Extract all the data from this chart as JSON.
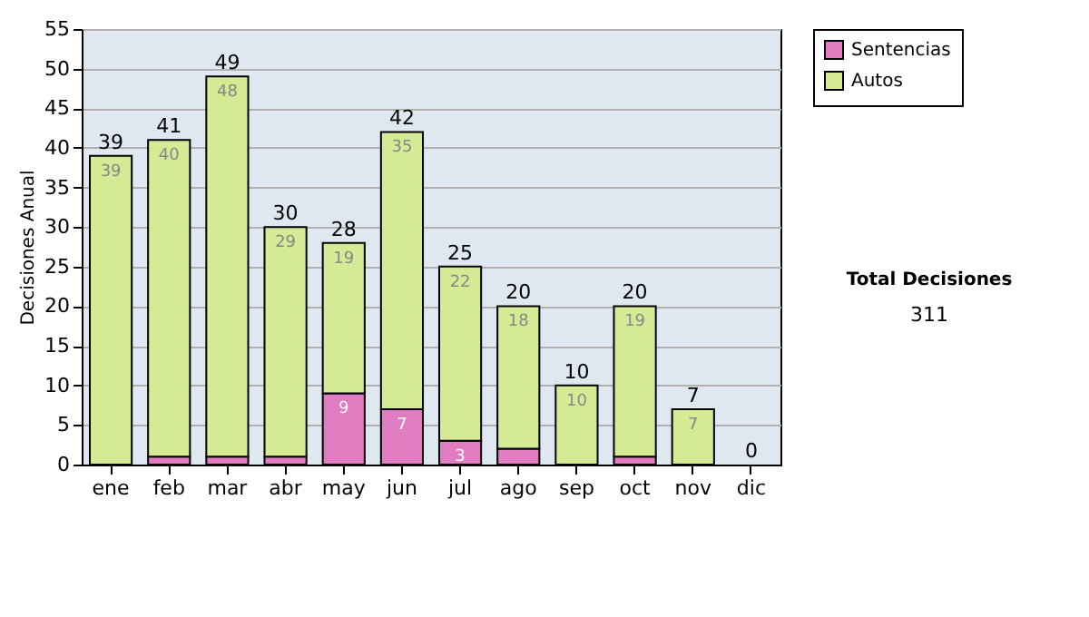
{
  "chart_data": {
    "type": "bar",
    "stacked": true,
    "ylabel": "Decisiones Anual",
    "categories": [
      "ene",
      "feb",
      "mar",
      "abr",
      "may",
      "jun",
      "jul",
      "ago",
      "sep",
      "oct",
      "nov",
      "dic"
    ],
    "series": [
      {
        "name": "Sentencias",
        "color": "#e07cc0",
        "values": [
          0,
          1,
          1,
          1,
          9,
          7,
          3,
          2,
          0,
          1,
          0,
          0
        ],
        "value_labels": [
          null,
          null,
          null,
          null,
          "9",
          "7",
          "3",
          null,
          null,
          null,
          null,
          null
        ]
      },
      {
        "name": "Autos",
        "color": "#d4ea94",
        "values": [
          39,
          40,
          48,
          29,
          19,
          35,
          22,
          18,
          10,
          19,
          7,
          0
        ],
        "value_labels": [
          "39",
          "40",
          "48",
          "29",
          "19",
          "35",
          "22",
          "18",
          "10",
          "19",
          "7",
          null
        ]
      }
    ],
    "totals": [
      "39",
      "41",
      "49",
      "30",
      "28",
      "42",
      "25",
      "20",
      "10",
      "20",
      "7",
      "0"
    ],
    "ylim": [
      0,
      55
    ],
    "yticks": [
      0,
      5,
      10,
      15,
      20,
      25,
      30,
      35,
      40,
      45,
      50,
      55
    ],
    "grid": "y",
    "legend": "right",
    "annotations": [
      "Total Decisiones",
      "311"
    ]
  }
}
